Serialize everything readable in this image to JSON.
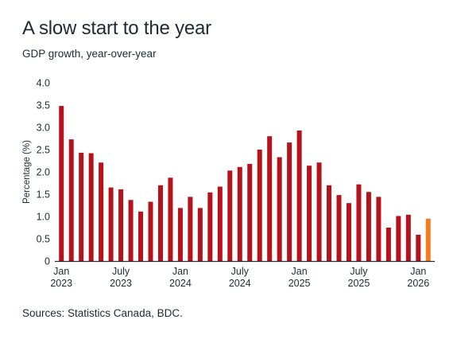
{
  "header": {
    "title": "A slow start to the year",
    "subtitle": "GDP growth, year-over-year"
  },
  "footer": {
    "source": "Sources: Statistics Canada, BDC."
  },
  "colors": {
    "bar": "#b5121b",
    "highlight": "#f47c20",
    "axis": "#1f2a33"
  },
  "chart_data": {
    "type": "bar",
    "ylabel": "Percentage (%)",
    "xlabel": "",
    "ylim": [
      0,
      4.0
    ],
    "yticks": [
      "0",
      "0.5",
      "1.0",
      "1.5",
      "2.0",
      "2.5",
      "3.0",
      "3.5",
      "4.0"
    ],
    "grid": false,
    "categories": [
      "Jan 2023",
      "Feb 2023",
      "Mar 2023",
      "Apr 2023",
      "May 2023",
      "Jun 2023",
      "Jul 2023",
      "Aug 2023",
      "Sep 2023",
      "Oct 2023",
      "Nov 2023",
      "Dec 2023",
      "Jan 2024",
      "Feb 2024",
      "Mar 2024",
      "Apr 2024",
      "May 2024",
      "Jun 2024",
      "Jul 2024",
      "Aug 2024",
      "Sep 2024",
      "Oct 2024",
      "Nov 2024",
      "Dec 2024",
      "Jan 2025",
      "Feb 2025",
      "Mar 2025",
      "Apr 2025",
      "May 2025",
      "Jun 2025",
      "Jul 2025",
      "Aug 2025",
      "Sep 2025",
      "Oct 2025",
      "Nov 2025",
      "Dec 2025",
      "Jan 2026",
      "Feb 2026"
    ],
    "values": [
      3.48,
      2.73,
      2.43,
      2.42,
      2.21,
      1.65,
      1.61,
      1.37,
      1.11,
      1.33,
      1.7,
      1.87,
      1.19,
      1.44,
      1.19,
      1.54,
      1.67,
      2.03,
      2.11,
      2.18,
      2.5,
      2.8,
      2.33,
      2.66,
      2.93,
      2.14,
      2.21,
      1.7,
      1.48,
      1.3,
      1.72,
      1.55,
      1.44,
      0.75,
      1.01,
      1.04,
      0.59,
      0.95
    ],
    "highlight_index": 37,
    "xtick_labels": [
      {
        "index": 0,
        "month": "Jan",
        "year": "2023"
      },
      {
        "index": 6,
        "month": "July",
        "year": "2023"
      },
      {
        "index": 12,
        "month": "Jan",
        "year": "2024"
      },
      {
        "index": 18,
        "month": "July",
        "year": "2024"
      },
      {
        "index": 24,
        "month": "Jan",
        "year": "2025"
      },
      {
        "index": 30,
        "month": "July",
        "year": "2025"
      },
      {
        "index": 36,
        "month": "Jan",
        "year": "2026"
      }
    ]
  }
}
